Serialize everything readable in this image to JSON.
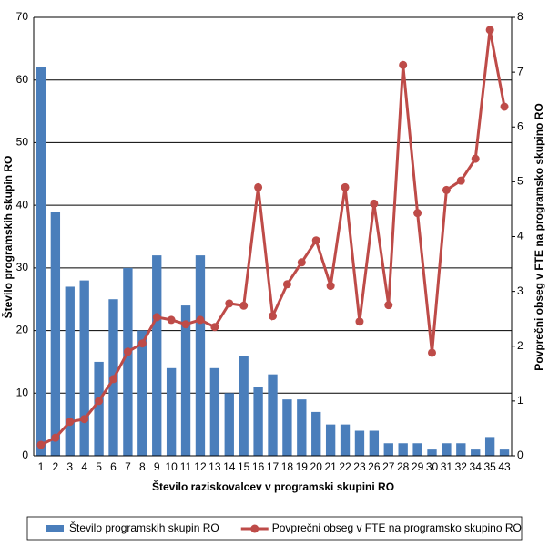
{
  "chart_data": {
    "type": "bar-line",
    "x_label": "Število raziskovalcev v programski skupini RO",
    "y_label": "Število programskih skupin RO",
    "y2_label": "Povprečni obseg v FTE na programsko skupino RO",
    "categories": [
      "1",
      "2",
      "3",
      "4",
      "5",
      "6",
      "7",
      "8",
      "9",
      "10",
      "11",
      "12",
      "13",
      "14",
      "15",
      "16",
      "17",
      "18",
      "19",
      "20",
      "21",
      "22",
      "23",
      "26",
      "27",
      "28",
      "29",
      "30",
      "31",
      "32",
      "34",
      "35",
      "43"
    ],
    "series": [
      {
        "name": "Število programskih skupin RO",
        "type": "bar",
        "color": "#4a7ebb",
        "values": [
          62,
          39,
          27,
          28,
          15,
          25,
          30,
          20,
          32,
          14,
          24,
          32,
          14,
          10,
          16,
          11,
          13,
          9,
          9,
          7,
          5,
          5,
          4,
          4,
          2,
          2,
          2,
          1,
          2,
          2,
          1,
          3,
          1
        ]
      },
      {
        "name": "Povprečni obseg v FTE na programsko skupino RO",
        "type": "line",
        "axis": "y2",
        "color": "#be4b48",
        "values": [
          0.2,
          0.33,
          0.62,
          0.67,
          1.0,
          1.4,
          1.9,
          2.05,
          2.53,
          2.48,
          2.4,
          2.48,
          2.35,
          2.78,
          2.74,
          4.9,
          2.55,
          3.13,
          3.53,
          3.93,
          3.1,
          4.9,
          2.45,
          4.6,
          2.75,
          7.13,
          4.43,
          1.88,
          4.85,
          5.02,
          5.42,
          7.77,
          6.37
        ]
      }
    ],
    "ylim": [
      0,
      70
    ],
    "yticks": [
      0,
      10,
      20,
      30,
      40,
      50,
      60,
      70
    ],
    "y2lim": [
      0,
      8
    ],
    "y2ticks": [
      0,
      1,
      2,
      3,
      4,
      5,
      6,
      7,
      8
    ],
    "grid": true,
    "legend": "bottom"
  }
}
